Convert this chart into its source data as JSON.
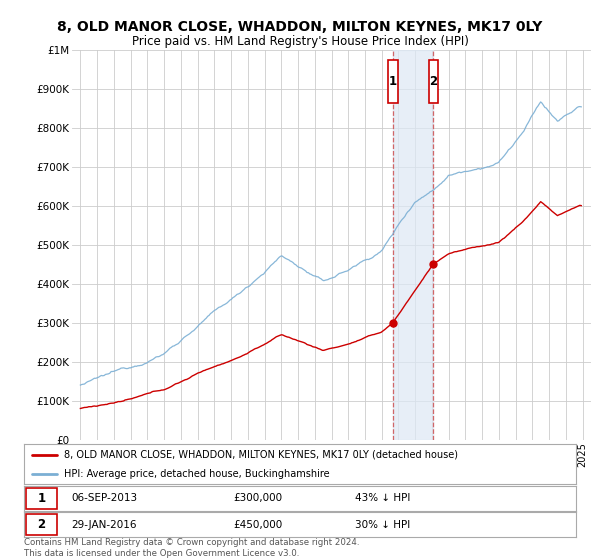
{
  "title": "8, OLD MANOR CLOSE, WHADDON, MILTON KEYNES, MK17 0LY",
  "subtitle": "Price paid vs. HM Land Registry's House Price Index (HPI)",
  "ylim": [
    0,
    1000000
  ],
  "yticks": [
    0,
    100000,
    200000,
    300000,
    400000,
    500000,
    600000,
    700000,
    800000,
    900000,
    1000000
  ],
  "ytick_labels": [
    "£0",
    "£100K",
    "£200K",
    "£300K",
    "£400K",
    "£500K",
    "£600K",
    "£700K",
    "£800K",
    "£900K",
    "£1M"
  ],
  "xlim_start": 1994.5,
  "xlim_end": 2025.5,
  "background_color": "#ffffff",
  "grid_color": "#cccccc",
  "transaction1": {
    "date_float": 2013.68,
    "price": 300000,
    "label": "1",
    "date_str": "06-SEP-2013",
    "price_str": "£300,000",
    "hpi_diff": "43% ↓ HPI"
  },
  "transaction2": {
    "date_float": 2016.08,
    "price": 450000,
    "label": "2",
    "date_str": "29-JAN-2016",
    "price_str": "£450,000",
    "hpi_diff": "30% ↓ HPI"
  },
  "shade_color": "#dde8f5",
  "shade_alpha": 0.7,
  "red_line_color": "#cc0000",
  "blue_line_color": "#7bafd4",
  "legend_property": "8, OLD MANOR CLOSE, WHADDON, MILTON KEYNES, MK17 0LY (detached house)",
  "legend_hpi": "HPI: Average price, detached house, Buckinghamshire",
  "footer": "Contains HM Land Registry data © Crown copyright and database right 2024.\nThis data is licensed under the Open Government Licence v3.0."
}
